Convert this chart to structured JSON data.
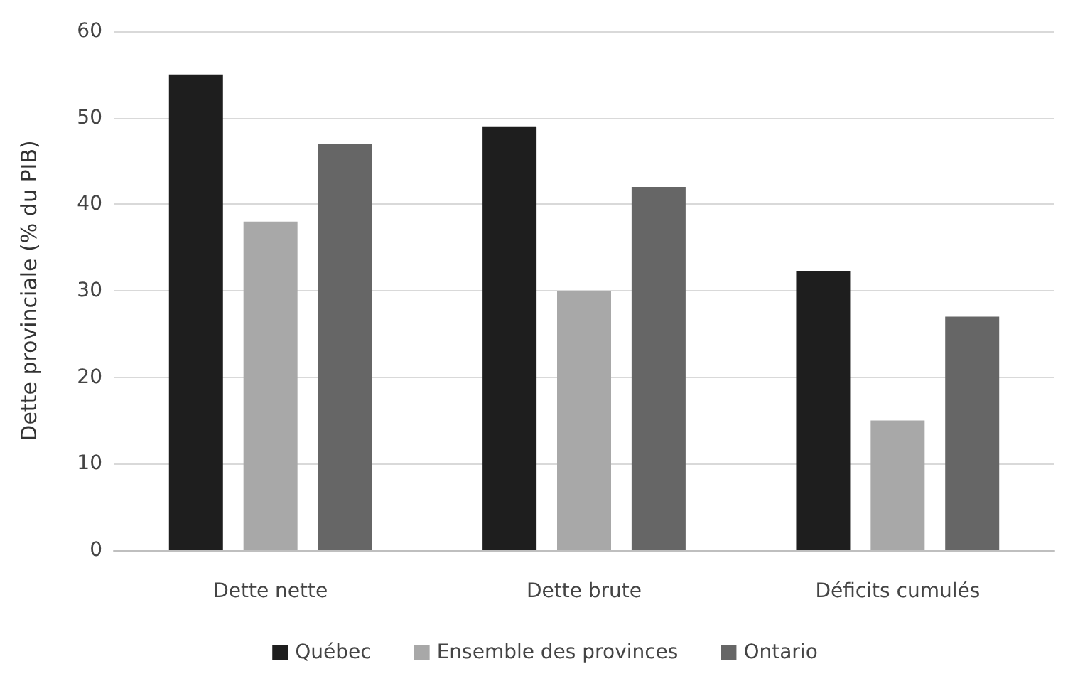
{
  "chart_data": {
    "type": "bar",
    "ylabel": "Dette provinciale (% du PIB)",
    "categories": [
      "Dette nette",
      "Dette brute",
      "Déficits cumulés"
    ],
    "series": [
      {
        "name": "Québec",
        "color": "#1e1e1e",
        "values": [
          55,
          49,
          32.3
        ]
      },
      {
        "name": "Ensemble des provinces",
        "color": "#a8a8a8",
        "values": [
          38,
          30,
          15
        ]
      },
      {
        "name": "Ontario",
        "color": "#666666",
        "values": [
          47,
          42,
          27
        ]
      }
    ],
    "ylim": [
      0,
      60
    ],
    "yticks": [
      0,
      10,
      20,
      30,
      40,
      50,
      60
    ],
    "grid": "y",
    "legend": "bottom"
  }
}
